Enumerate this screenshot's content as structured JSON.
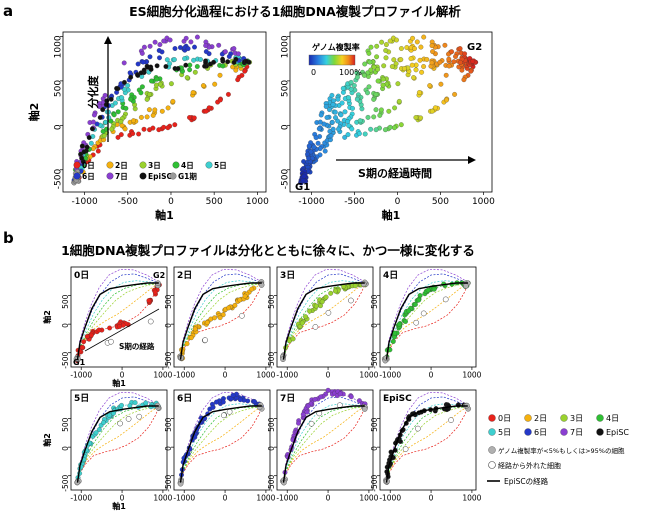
{
  "panel_a": {
    "letter": "a",
    "title": "ES細胞分化過程における1細胞DNA複製プロファイル解析",
    "xlabel": "軸1",
    "ylabel": "軸2",
    "x_ticks": [
      "-1000",
      "-500",
      "0",
      "500",
      "1000"
    ],
    "y_ticks": [
      "-500",
      "0",
      "500",
      "1000"
    ],
    "left": {
      "arrow_label": "分化度",
      "legend": [
        {
          "key": "day0",
          "label": "0日",
          "color": "#e8221b"
        },
        {
          "key": "day2",
          "label": "2日",
          "color": "#f5b10f"
        },
        {
          "key": "day3",
          "label": "3日",
          "color": "#9ad22e"
        },
        {
          "key": "day4",
          "label": "4日",
          "color": "#2fbf34"
        },
        {
          "key": "day5",
          "label": "5日",
          "color": "#3ecfcf"
        },
        {
          "key": "day6",
          "label": "6日",
          "color": "#2438c8"
        },
        {
          "key": "day7",
          "label": "7日",
          "color": "#8a3fd1"
        },
        {
          "key": "episc",
          "label": "EpiSC",
          "color": "#111111"
        },
        {
          "key": "g1",
          "label": "G1期",
          "color": "#9a9a9a"
        }
      ]
    },
    "right": {
      "colorbar_title": "ゲノム複製率",
      "colorbar_min": "0",
      "colorbar_max": "100%",
      "arrow_label": "S期の経過時間",
      "label_g1": "G1",
      "label_g2": "G2"
    }
  },
  "panel_b": {
    "letter": "b",
    "title": "1細胞DNA複製プロファイルは分化とともに徐々に、かつ一様に変化する",
    "xlabel": "軸1",
    "ylabel": "軸2",
    "x_ticks": [
      "-1000",
      "0",
      "1000"
    ],
    "y_ticks": [
      "-500",
      "0",
      "500"
    ],
    "subpanels": [
      {
        "key": "day0",
        "label": "0日",
        "color": "#e8221b"
      },
      {
        "key": "day2",
        "label": "2日",
        "color": "#f5b10f"
      },
      {
        "key": "day3",
        "label": "3日",
        "color": "#9ad22e"
      },
      {
        "key": "day4",
        "label": "4日",
        "color": "#2fbf34"
      },
      {
        "key": "day5",
        "label": "5日",
        "color": "#3ecfcf"
      },
      {
        "key": "day6",
        "label": "6日",
        "color": "#2438c8"
      },
      {
        "key": "day7",
        "label": "7日",
        "color": "#8a3fd1"
      },
      {
        "key": "episc",
        "label": "EpiSC",
        "color": "#111111"
      }
    ],
    "annotation_g1": "G1",
    "annotation_g2": "G2",
    "annotation_path": "S期の経路",
    "legend": {
      "items": [
        {
          "key": "day0",
          "label": "0日",
          "color": "#e8221b"
        },
        {
          "key": "day2",
          "label": "2日",
          "color": "#f5b10f"
        },
        {
          "key": "day3",
          "label": "3日",
          "color": "#9ad22e"
        },
        {
          "key": "day4",
          "label": "4日",
          "color": "#2fbf34"
        },
        {
          "key": "day5",
          "label": "5日",
          "color": "#3ecfcf"
        },
        {
          "key": "day6",
          "label": "6日",
          "color": "#2438c8"
        },
        {
          "key": "day7",
          "label": "7日",
          "color": "#8a3fd1"
        },
        {
          "key": "episc",
          "label": "EpiSC",
          "color": "#111111"
        }
      ],
      "gray_label": "ゲノム複製率が<5%もしくは>95%の細胞",
      "open_label": "経路から外れた細胞",
      "line_label": "EpiSCの経路"
    }
  },
  "chart_data": [
    {
      "id": "a-left",
      "type": "scatter",
      "title": "ES細胞分化過程における1細胞DNA複製プロファイル解析",
      "xlabel": "軸1",
      "ylabel": "軸2",
      "xlim": [
        -1250,
        1100
      ],
      "ylim": [
        -750,
        1050
      ],
      "series": [
        {
          "name": "0日",
          "path": [
            [
              -1080,
              -640
            ],
            [
              -1050,
              -480
            ],
            [
              -900,
              -300
            ],
            [
              -700,
              -150
            ],
            [
              -400,
              -80
            ],
            [
              -150,
              -40
            ],
            [
              100,
              30
            ],
            [
              400,
              160
            ],
            [
              650,
              350
            ],
            [
              820,
              560
            ],
            [
              900,
              700
            ]
          ]
        },
        {
          "name": "2日",
          "path": [
            [
              -1090,
              -620
            ],
            [
              -1020,
              -420
            ],
            [
              -860,
              -220
            ],
            [
              -650,
              -60
            ],
            [
              -400,
              60
            ],
            [
              -120,
              170
            ],
            [
              150,
              310
            ],
            [
              420,
              460
            ],
            [
              700,
              620
            ],
            [
              900,
              710
            ]
          ]
        },
        {
          "name": "3日",
          "path": [
            [
              -1090,
              -620
            ],
            [
              -1000,
              -380
            ],
            [
              -850,
              -170
            ],
            [
              -640,
              30
            ],
            [
              -400,
              230
            ],
            [
              -150,
              420
            ],
            [
              120,
              560
            ],
            [
              420,
              640
            ],
            [
              700,
              690
            ],
            [
              900,
              710
            ]
          ]
        },
        {
          "name": "4日",
          "path": [
            [
              -1090,
              -620
            ],
            [
              -1010,
              -380
            ],
            [
              -860,
              -140
            ],
            [
              -660,
              110
            ],
            [
              -440,
              330
            ],
            [
              -200,
              520
            ],
            [
              80,
              630
            ],
            [
              380,
              690
            ],
            [
              700,
              700
            ],
            [
              900,
              710
            ]
          ]
        },
        {
          "name": "5日",
          "path": [
            [
              -1090,
              -620
            ],
            [
              -1020,
              -360
            ],
            [
              -880,
              -100
            ],
            [
              -700,
              180
            ],
            [
              -480,
              430
            ],
            [
              -240,
              620
            ],
            [
              40,
              730
            ],
            [
              340,
              760
            ],
            [
              650,
              740
            ],
            [
              900,
              720
            ]
          ]
        },
        {
          "name": "6日",
          "path": [
            [
              -1090,
              -620
            ],
            [
              -1030,
              -330
            ],
            [
              -900,
              -60
            ],
            [
              -730,
              250
            ],
            [
              -520,
              530
            ],
            [
              -280,
              740
            ],
            [
              0,
              860
            ],
            [
              300,
              880
            ],
            [
              620,
              800
            ],
            [
              900,
              720
            ]
          ]
        },
        {
          "name": "7日",
          "path": [
            [
              -1090,
              -620
            ],
            [
              -1040,
              -300
            ],
            [
              -920,
              0
            ],
            [
              -760,
              330
            ],
            [
              -560,
              640
            ],
            [
              -320,
              860
            ],
            [
              -40,
              960
            ],
            [
              280,
              950
            ],
            [
              600,
              860
            ],
            [
              900,
              740
            ]
          ]
        },
        {
          "name": "EpiSC",
          "path": [
            [
              -1090,
              -620
            ],
            [
              -1030,
              -320
            ],
            [
              -900,
              -40
            ],
            [
              -740,
              270
            ],
            [
              -540,
              520
            ],
            [
              -300,
              620
            ],
            [
              0,
              660
            ],
            [
              300,
              690
            ],
            [
              620,
              720
            ],
            [
              900,
              720
            ]
          ]
        }
      ]
    },
    {
      "id": "a-right",
      "type": "scatter",
      "title": "ゲノム複製率",
      "xlabel": "軸1",
      "ylabel": "軸2",
      "xlim": [
        -1250,
        1100
      ],
      "ylim": [
        -750,
        1050
      ],
      "color_scale": {
        "variable": "ゲノム複製率",
        "min": 0,
        "max": 100,
        "unit": "%"
      }
    },
    {
      "id": "b-grid",
      "type": "scatter",
      "title": "1細胞DNA複製プロファイルは分化とともに徐々に、かつ一様に変化する",
      "xlabel": "軸1",
      "ylabel": "軸2",
      "xlim": [
        -1250,
        1100
      ],
      "ylim": [
        -750,
        1000
      ],
      "panels": [
        "0日",
        "2日",
        "3日",
        "4日",
        "5日",
        "6日",
        "7日",
        "EpiSC"
      ],
      "reference_paths": {
        "EpiSCの経路": [
          [
            -1090,
            -620
          ],
          [
            -1030,
            -320
          ],
          [
            -900,
            -40
          ],
          [
            -740,
            270
          ],
          [
            -540,
            520
          ],
          [
            -300,
            620
          ],
          [
            0,
            660
          ],
          [
            300,
            690
          ],
          [
            620,
            720
          ],
          [
            900,
            720
          ]
        ]
      }
    }
  ]
}
